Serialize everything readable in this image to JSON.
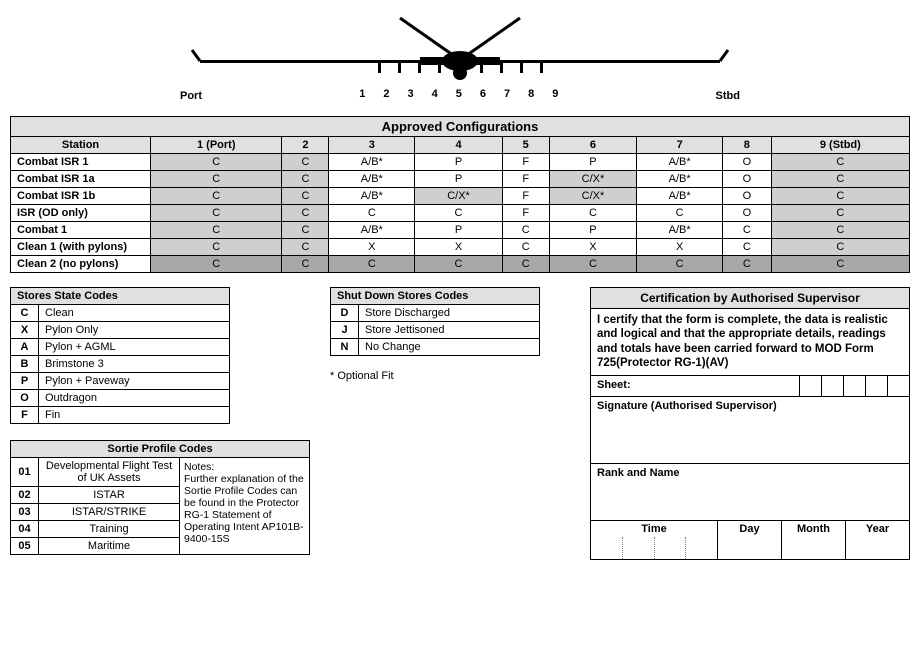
{
  "diagram": {
    "port_label": "Port",
    "stbd_label": "Stbd",
    "station_numbers": [
      "1",
      "2",
      "3",
      "4",
      "5",
      "6",
      "7",
      "8",
      "9"
    ]
  },
  "config_table": {
    "title": "Approved Configurations",
    "station_header": "Station",
    "columns": [
      "1 (Port)",
      "2",
      "3",
      "4",
      "5",
      "6",
      "7",
      "8",
      "9 (Stbd)"
    ],
    "rows": [
      {
        "label": "Combat ISR 1",
        "cells": [
          {
            "v": "C",
            "s": 1
          },
          {
            "v": "C",
            "s": 1
          },
          {
            "v": "A/B*",
            "s": 0
          },
          {
            "v": "P",
            "s": 0
          },
          {
            "v": "F",
            "s": 0
          },
          {
            "v": "P",
            "s": 0
          },
          {
            "v": "A/B*",
            "s": 0
          },
          {
            "v": "O",
            "s": 0
          },
          {
            "v": "C",
            "s": 1
          }
        ]
      },
      {
        "label": "Combat ISR 1a",
        "cells": [
          {
            "v": "C",
            "s": 1
          },
          {
            "v": "C",
            "s": 1
          },
          {
            "v": "A/B*",
            "s": 0
          },
          {
            "v": "P",
            "s": 0
          },
          {
            "v": "F",
            "s": 0
          },
          {
            "v": "C/X*",
            "s": 1
          },
          {
            "v": "A/B*",
            "s": 0
          },
          {
            "v": "O",
            "s": 0
          },
          {
            "v": "C",
            "s": 1
          }
        ]
      },
      {
        "label": "Combat ISR 1b",
        "cells": [
          {
            "v": "C",
            "s": 1
          },
          {
            "v": "C",
            "s": 1
          },
          {
            "v": "A/B*",
            "s": 0
          },
          {
            "v": "C/X*",
            "s": 1
          },
          {
            "v": "F",
            "s": 0
          },
          {
            "v": "C/X*",
            "s": 1
          },
          {
            "v": "A/B*",
            "s": 0
          },
          {
            "v": "O",
            "s": 0
          },
          {
            "v": "C",
            "s": 1
          }
        ]
      },
      {
        "label": "ISR (OD only)",
        "cells": [
          {
            "v": "C",
            "s": 1
          },
          {
            "v": "C",
            "s": 1
          },
          {
            "v": "C",
            "s": 0
          },
          {
            "v": "C",
            "s": 0
          },
          {
            "v": "F",
            "s": 0
          },
          {
            "v": "C",
            "s": 0
          },
          {
            "v": "C",
            "s": 0
          },
          {
            "v": "O",
            "s": 0
          },
          {
            "v": "C",
            "s": 1
          }
        ]
      },
      {
        "label": "Combat 1",
        "cells": [
          {
            "v": "C",
            "s": 1
          },
          {
            "v": "C",
            "s": 1
          },
          {
            "v": "A/B*",
            "s": 0
          },
          {
            "v": "P",
            "s": 0
          },
          {
            "v": "C",
            "s": 0
          },
          {
            "v": "P",
            "s": 0
          },
          {
            "v": "A/B*",
            "s": 0
          },
          {
            "v": "C",
            "s": 0
          },
          {
            "v": "C",
            "s": 1
          }
        ]
      },
      {
        "label": "Clean 1 (with pylons)",
        "cells": [
          {
            "v": "C",
            "s": 1
          },
          {
            "v": "C",
            "s": 1
          },
          {
            "v": "X",
            "s": 0
          },
          {
            "v": "X",
            "s": 0
          },
          {
            "v": "C",
            "s": 0
          },
          {
            "v": "X",
            "s": 0
          },
          {
            "v": "X",
            "s": 0
          },
          {
            "v": "C",
            "s": 0
          },
          {
            "v": "C",
            "s": 1
          }
        ]
      },
      {
        "label": "Clean 2 (no pylons)",
        "cells": [
          {
            "v": "C",
            "s": 2
          },
          {
            "v": "C",
            "s": 2
          },
          {
            "v": "C",
            "s": 2
          },
          {
            "v": "C",
            "s": 2
          },
          {
            "v": "C",
            "s": 2
          },
          {
            "v": "C",
            "s": 2
          },
          {
            "v": "C",
            "s": 2
          },
          {
            "v": "C",
            "s": 2
          },
          {
            "v": "C",
            "s": 2
          }
        ]
      }
    ]
  },
  "stores_state": {
    "title": "Stores State Codes",
    "rows": [
      [
        "C",
        "Clean"
      ],
      [
        "X",
        "Pylon Only"
      ],
      [
        "A",
        "Pylon + AGML"
      ],
      [
        "B",
        "Brimstone 3"
      ],
      [
        "P",
        "Pylon  + Paveway"
      ],
      [
        "O",
        "Outdragon"
      ],
      [
        "F",
        "Fin"
      ]
    ]
  },
  "shutdown": {
    "title": "Shut Down Stores Codes",
    "rows": [
      [
        "D",
        "Store Discharged"
      ],
      [
        "J",
        "Store Jettisoned"
      ],
      [
        "N",
        "No Change"
      ]
    ]
  },
  "optional_fit": "* Optional Fit",
  "sortie": {
    "title": "Sortie Profile Codes",
    "rows": [
      [
        "01",
        "Developmental Flight Test of UK Assets"
      ],
      [
        "02",
        "ISTAR"
      ],
      [
        "03",
        "ISTAR/STRIKE"
      ],
      [
        "04",
        "Training"
      ],
      [
        "05",
        "Maritime"
      ]
    ],
    "notes_label": "Notes:",
    "notes_text": "Further explanation of the Sortie Profile Codes can be found in the Protector RG-1 Statement of Operating Intent AP101B-9400-15S"
  },
  "cert": {
    "title": "Certification by Authorised Supervisor",
    "text_pre": "I certify that the form is complete, the data is realistic and logical and that the appropriate details, readings and ",
    "text_bold": "totals have been carried forward to MOD Form 725(Protector RG-1)(AV)",
    "sheet_label": "Sheet:",
    "signature_label": "Signature (Authorised Supervisor)",
    "rank_label": "Rank and Name",
    "time_label": "Time",
    "day_label": "Day",
    "month_label": "Month",
    "year_label": "Year"
  },
  "colors": {
    "header_bg": "#e0e0e0",
    "shaded": "#cfcfcf",
    "shaded_dark": "#a8a8a8",
    "border": "#000000",
    "text": "#000000",
    "bg": "#ffffff"
  }
}
